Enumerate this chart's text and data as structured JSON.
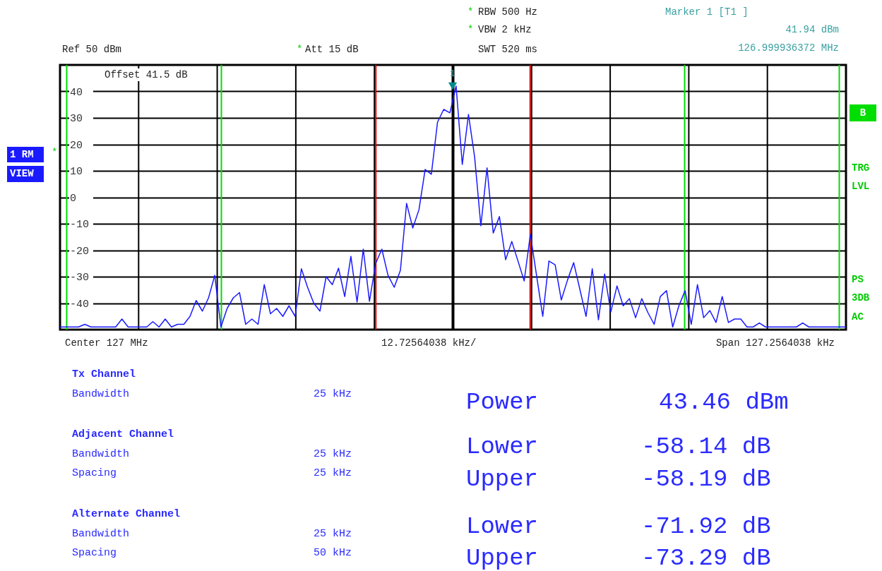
{
  "chart_data": {
    "type": "line",
    "categories": [
      null,
      null,
      null,
      null,
      null,
      null,
      null,
      null,
      null,
      null,
      null,
      null,
      null,
      null,
      null,
      null,
      null,
      null,
      null,
      null,
      null,
      null,
      null,
      null,
      null,
      null,
      null,
      null,
      null,
      null,
      null,
      null,
      null,
      null,
      null,
      null,
      null,
      null,
      null,
      null,
      null,
      null,
      null,
      null,
      null,
      null,
      null,
      null,
      null,
      null,
      null,
      null,
      null,
      null,
      null,
      null,
      null,
      null,
      null,
      null,
      null,
      null,
      null,
      null,
      null,
      null,
      null,
      null,
      null,
      null,
      null,
      null,
      null,
      null,
      null,
      null,
      null,
      null,
      null,
      null,
      null,
      null,
      null,
      null,
      null,
      null,
      null,
      null,
      null,
      null,
      null,
      null,
      null,
      null,
      null,
      null,
      null,
      null,
      null,
      null,
      null,
      null,
      null,
      null,
      null,
      null,
      null,
      null,
      null,
      null,
      null,
      null,
      null,
      null,
      null,
      null,
      null,
      null,
      null,
      null,
      null,
      null,
      null,
      null,
      null,
      null,
      null,
      null
    ],
    "ylim": [
      -50,
      50
    ],
    "yticks": [
      -40,
      -30,
      -20,
      -10,
      0,
      10,
      20,
      30,
      40
    ],
    "tick_labels": "y",
    "grid": true,
    "series": [
      {
        "color": "#1a1aff",
        "values": [
          -49,
          -49,
          -49,
          -49,
          -48,
          -49,
          -49,
          -49,
          -49,
          -49,
          -46,
          -49,
          -49,
          -49,
          -49,
          -47,
          -49,
          -46,
          -49,
          -48,
          -48,
          -45,
          -39,
          -43,
          -38,
          -29.5,
          -49,
          -42,
          -38,
          -36,
          -48,
          -46,
          -48,
          -33,
          -44,
          -42,
          -45,
          -41,
          -45,
          -27,
          -34,
          -40,
          -43,
          -30,
          -33,
          -26.8,
          -37.5,
          -22.3,
          -39.6,
          -19.6,
          -39.3,
          -25,
          -19.6,
          -29.5,
          -34,
          -27.6,
          -2.3,
          -11.6,
          -4.7,
          10.5,
          8.7,
          28.4,
          33.2,
          31.9,
          42,
          12.4,
          31.3,
          15.1,
          -10.8,
          11.1,
          -13.5,
          -7.3,
          -23.6,
          -16.7,
          -24.1,
          -31.6,
          -14,
          -29.5,
          -45,
          -24.1,
          -25.5,
          -38.8,
          -31.3,
          -24.7,
          -34.8,
          -45,
          -27,
          -46.3,
          -29,
          -43.3,
          -33.5,
          -41,
          -38.3,
          -45.5,
          -38.3,
          -43.6,
          -48,
          -37.5,
          -35.3,
          -49,
          -41,
          -35.3,
          -48,
          -33,
          -45.5,
          -42.8,
          -47.3,
          -37.5,
          -47.3,
          -46,
          -46,
          -49,
          -49,
          -47.5,
          -49,
          -49,
          -49,
          -49,
          -49,
          -49,
          -47.5,
          -49,
          -49,
          -49,
          -49,
          -49,
          -49,
          -49
        ]
      }
    ],
    "annotations": [
      "*",
      "RBW 500 Hz",
      "*",
      "VBW 2 kHz",
      "SWT 520 ms",
      "Marker 1 [T1 ]",
      "41.94 dBm",
      "126.999936372 MHz",
      "Ref 50 dBm",
      "*",
      "Att 15 dB",
      "Offset 41.5 dB",
      "1 RM",
      "*",
      "VIEW",
      "B",
      "TRG",
      "LVL",
      "PS",
      "3DB",
      "AC",
      "Center 127 MHz",
      "12.72564038 kHz/",
      "Span 127.2564038 kHz",
      "Tx Channel",
      "Bandwidth",
      "25 kHz",
      "Adjacent Channel",
      "Bandwidth",
      "25 kHz",
      "Spacing",
      "25 kHz",
      "Alternate Channel",
      "Bandwidth",
      "25 kHz",
      "Spacing",
      "50 kHz",
      "Power",
      "43.46 dBm",
      "Lower",
      "-58.14 dB",
      "Upper",
      "-58.19 dB",
      "Lower",
      "-71.92 dB",
      "Upper",
      "-73.29 dB",
      {
        "text": "1",
        "y": 42
      }
    ]
  }
}
